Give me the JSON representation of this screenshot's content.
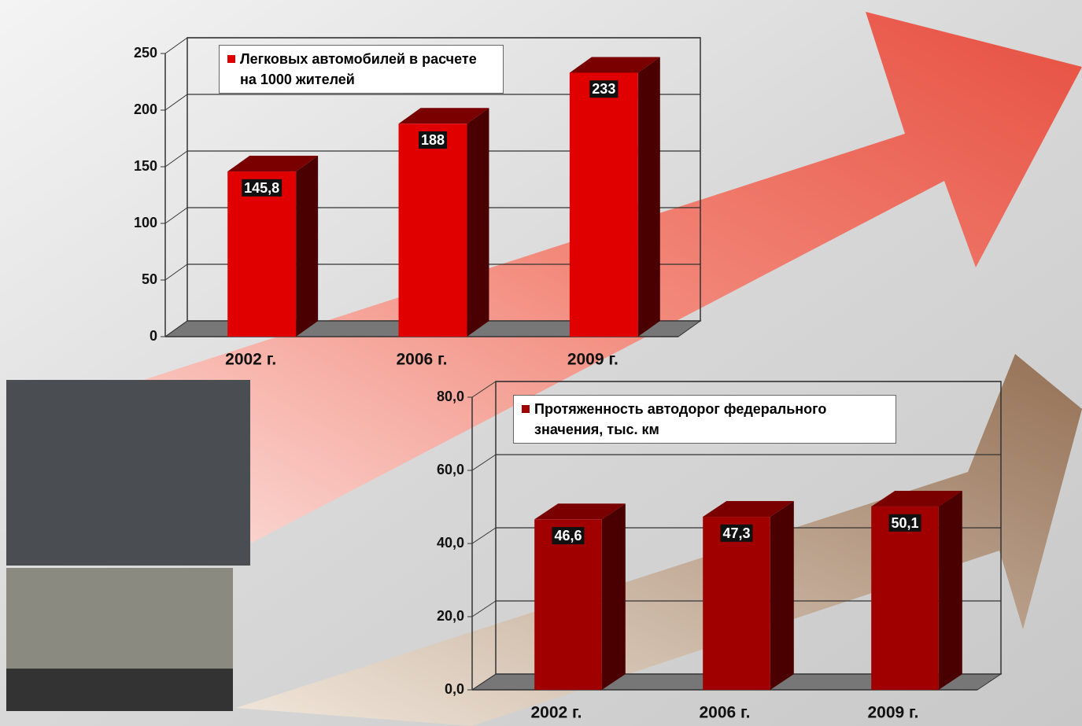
{
  "chart_data": [
    {
      "type": "bar",
      "categories": [
        "2002 г.",
        "2006 г.",
        "2009 г."
      ],
      "series": [
        {
          "name": "Легковых автомобилей в расчете на 1000 жителей",
          "color": "#e00000",
          "values": [
            145.8,
            188,
            233
          ],
          "value_labels": [
            "145,8",
            "188",
            "233"
          ]
        }
      ],
      "ylim": [
        0,
        250
      ],
      "yticks": [
        0,
        50,
        100,
        150,
        200,
        250
      ],
      "grid": true
    },
    {
      "type": "bar",
      "categories": [
        "2002 г.",
        "2006 г.",
        "2009 г."
      ],
      "series": [
        {
          "name": "Протяженность автодорог федерального значения, тыс. км",
          "color": "#a00000",
          "values": [
            46.6,
            47.3,
            50.1
          ],
          "value_labels": [
            "46,6",
            "47,3",
            "50,1"
          ]
        }
      ],
      "ylim": [
        0,
        80
      ],
      "yticks": [
        {
          "value": 0,
          "label": "0,0"
        },
        {
          "value": 20,
          "label": "20,0"
        },
        {
          "value": 40,
          "label": "40,0"
        },
        {
          "value": 60,
          "label": "60,0"
        },
        {
          "value": 80,
          "label": "80,0"
        }
      ],
      "grid": true
    }
  ]
}
